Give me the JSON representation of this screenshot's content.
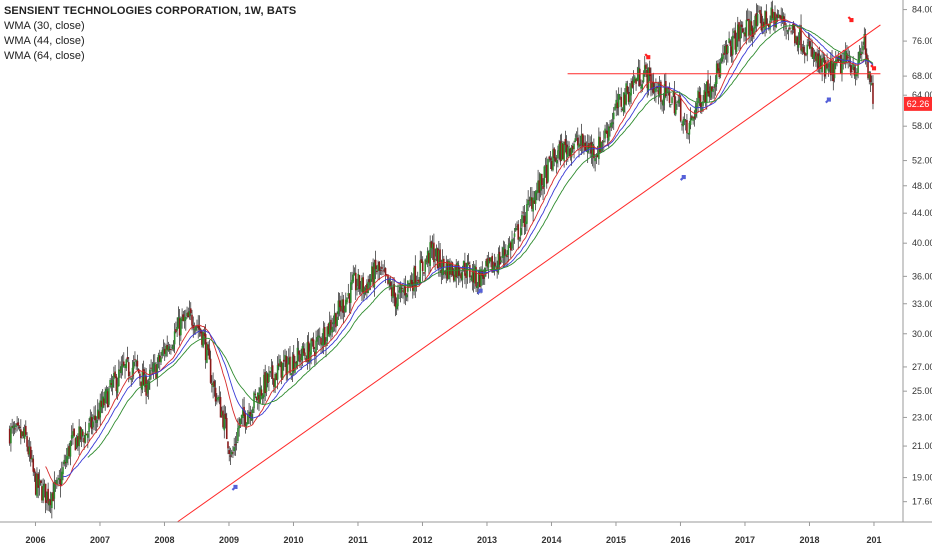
{
  "legend": {
    "title": "SENSIENT TECHNOLOGIES CORPORATION, 1W, BATS",
    "ma1": "WMA (30, close)",
    "ma2": "WMA (44, close)",
    "ma3": "WMA (64, close)"
  },
  "colors": {
    "up_candle": "#2e8b2e",
    "down_candle": "#8b1a1a",
    "wick": "#222222",
    "ma30": "#d62a2a",
    "ma44": "#3a3ad6",
    "ma64": "#2e8b2e",
    "trendline": "#ff2a2a",
    "up_arrow": "#5560d8",
    "down_arrow": "#ff2020",
    "price_badge": "#ff2d2d"
  },
  "chart_data": {
    "type": "candlestick",
    "symbol": "SENSIENT TECHNOLOGIES CORPORATION",
    "interval": "1W",
    "exchange": "BATS",
    "scale": "log",
    "ylim": [
      16.5,
      85.5
    ],
    "y_ticks": [
      "84.00",
      "76.00",
      "68.00",
      "64.00",
      "58.00",
      "52.00",
      "48.00",
      "44.00",
      "40.00",
      "36.00",
      "33.00",
      "30.00",
      "27.00",
      "25.00",
      "23.00",
      "21.00",
      "19.00",
      "17.60"
    ],
    "x_ticks": [
      "2006",
      "2007",
      "2008",
      "2009",
      "2010",
      "2011",
      "2012",
      "2013",
      "2014",
      "2015",
      "2016",
      "2017",
      "2018",
      "201"
    ],
    "last_price": "62.26",
    "price_path": [
      [
        2005.6,
        22.0
      ],
      [
        2005.85,
        21.5
      ],
      [
        2006.0,
        18.6
      ],
      [
        2006.2,
        17.9
      ],
      [
        2006.35,
        18.4
      ],
      [
        2006.55,
        21.2
      ],
      [
        2006.8,
        21.9
      ],
      [
        2007.0,
        23.5
      ],
      [
        2007.2,
        25.5
      ],
      [
        2007.35,
        26.6
      ],
      [
        2007.55,
        27.1
      ],
      [
        2007.7,
        25.4
      ],
      [
        2007.9,
        27.2
      ],
      [
        2008.0,
        28.5
      ],
      [
        2008.25,
        30.9
      ],
      [
        2008.45,
        31.6
      ],
      [
        2008.6,
        29.8
      ],
      [
        2008.75,
        25.5
      ],
      [
        2008.9,
        23.2
      ],
      [
        2009.05,
        20.2
      ],
      [
        2009.15,
        22.4
      ],
      [
        2009.35,
        23.9
      ],
      [
        2009.55,
        25.5
      ],
      [
        2009.8,
        26.9
      ],
      [
        2010.0,
        27.6
      ],
      [
        2010.3,
        28.6
      ],
      [
        2010.55,
        30.7
      ],
      [
        2010.75,
        32.8
      ],
      [
        2010.95,
        35.2
      ],
      [
        2011.1,
        34.7
      ],
      [
        2011.3,
        36.8
      ],
      [
        2011.45,
        35.2
      ],
      [
        2011.6,
        33.3
      ],
      [
        2011.8,
        35.3
      ],
      [
        2012.0,
        37.0
      ],
      [
        2012.15,
        39.2
      ],
      [
        2012.3,
        37.1
      ],
      [
        2012.5,
        36.8
      ],
      [
        2012.65,
        37.0
      ],
      [
        2012.85,
        35.7
      ],
      [
        2013.0,
        36.6
      ],
      [
        2013.2,
        38.0
      ],
      [
        2013.4,
        40.2
      ],
      [
        2013.55,
        42.6
      ],
      [
        2013.7,
        46.2
      ],
      [
        2013.85,
        48.4
      ],
      [
        2014.0,
        51.8
      ],
      [
        2014.15,
        53.6
      ],
      [
        2014.35,
        55.0
      ],
      [
        2014.5,
        54.6
      ],
      [
        2014.7,
        53.6
      ],
      [
        2014.85,
        57.0
      ],
      [
        2015.0,
        61.2
      ],
      [
        2015.15,
        64.0
      ],
      [
        2015.3,
        67.3
      ],
      [
        2015.45,
        68.6
      ],
      [
        2015.65,
        64.6
      ],
      [
        2015.85,
        63.6
      ],
      [
        2016.0,
        61.2
      ],
      [
        2016.1,
        56.3
      ],
      [
        2016.25,
        62.3
      ],
      [
        2016.45,
        66.0
      ],
      [
        2016.6,
        69.5
      ],
      [
        2016.75,
        74.2
      ],
      [
        2016.9,
        77.7
      ],
      [
        2017.1,
        79.8
      ],
      [
        2017.3,
        81.0
      ],
      [
        2017.5,
        82.0
      ],
      [
        2017.65,
        79.8
      ],
      [
        2017.85,
        77.0
      ],
      [
        2018.0,
        73.6
      ],
      [
        2018.15,
        70.3
      ],
      [
        2018.3,
        68.6
      ],
      [
        2018.45,
        70.3
      ],
      [
        2018.6,
        71.5
      ],
      [
        2018.75,
        69.5
      ],
      [
        2018.85,
        76.8
      ],
      [
        2018.92,
        67.0
      ],
      [
        2019.0,
        62.3
      ]
    ],
    "price_line_h": 68.5,
    "trendline": {
      "from": [
        2008.2,
        16.5
      ],
      "to": [
        2019.1,
        80.0
      ]
    },
    "arrows": [
      {
        "dir": "up",
        "date": 2009.1,
        "price": 18.5
      },
      {
        "dir": "up",
        "date": 2012.9,
        "price": 34.5
      },
      {
        "dir": "up",
        "date": 2016.05,
        "price": 49.5
      },
      {
        "dir": "up",
        "date": 2018.3,
        "price": 63.3
      },
      {
        "dir": "down",
        "date": 2015.5,
        "price": 72.0
      },
      {
        "dir": "down",
        "date": 2018.65,
        "price": 81.0
      },
      {
        "dir": "down",
        "date": 2019.0,
        "price": 69.5
      }
    ],
    "series": [
      {
        "name": "WMA (30, close)",
        "period": 30
      },
      {
        "name": "WMA (44, close)",
        "period": 44
      },
      {
        "name": "WMA (64, close)",
        "period": 64
      }
    ],
    "grid": false
  }
}
